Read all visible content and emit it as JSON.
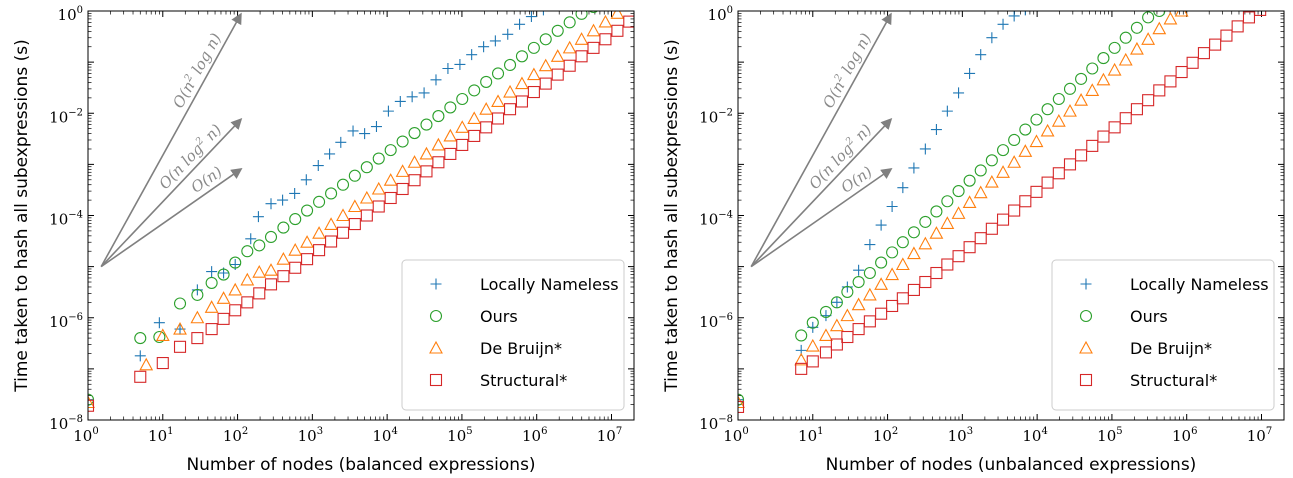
{
  "colors": {
    "locally_nameless": "#1f77b4",
    "ours": "#2ca02c",
    "de_bruijn": "#ff7f0e",
    "structural": "#d62728",
    "annotation": "#808080"
  },
  "chart_data": [
    {
      "type": "scatter",
      "xlabel": "Number of nodes (balanced expressions)",
      "ylabel": "Time taken to hash all subexpressions (s)",
      "xscale": "log",
      "yscale": "log",
      "xlim": [
        1,
        20000000
      ],
      "ylim": [
        1e-08,
        1
      ],
      "x_ticks": [
        {
          "base": "10",
          "exp": "0"
        },
        {
          "base": "10",
          "exp": "1"
        },
        {
          "base": "10",
          "exp": "2"
        },
        {
          "base": "10",
          "exp": "3"
        },
        {
          "base": "10",
          "exp": "4"
        },
        {
          "base": "10",
          "exp": "5"
        },
        {
          "base": "10",
          "exp": "6"
        },
        {
          "base": "10",
          "exp": "7"
        }
      ],
      "y_ticks": [
        {
          "base": "10",
          "exp": "−8"
        },
        {
          "base": "10",
          "exp": "−6"
        },
        {
          "base": "10",
          "exp": "−4"
        },
        {
          "base": "10",
          "exp": "−2"
        },
        {
          "base": "10",
          "exp": "0"
        }
      ],
      "legend": {
        "placement": "lower-right"
      },
      "annotations": [
        {
          "parts": [
            [
              "n",
              "O(n"
            ],
            [
              "sup",
              "2"
            ],
            [
              "n",
              " log n)"
            ]
          ],
          "slope": 2
        },
        {
          "parts": [
            [
              "n",
              "O(n log"
            ],
            [
              "sup",
              "2"
            ],
            [
              "n",
              " n)"
            ]
          ],
          "slope": 1.5
        },
        {
          "parts": [
            [
              "n",
              "O(n)"
            ]
          ],
          "slope": 1
        }
      ],
      "series": [
        {
          "name": "Locally Nameless",
          "marker": "plus",
          "x": [
            1,
            5,
            9,
            17,
            29,
            45,
            65,
            93,
            150,
            190,
            280,
            400,
            580,
            830,
            1200,
            1700,
            2400,
            3500,
            5000,
            7200,
            10400,
            15000,
            21600,
            31200,
            45000,
            65000,
            94000,
            135000,
            195000,
            280000,
            410000,
            590000,
            850000,
            1230000
          ],
          "y": [
            2.5e-08,
            1.8e-07,
            8e-07,
            6e-07,
            3.5e-06,
            8e-06,
            7.5e-06,
            1.1e-05,
            3.5e-05,
            9.5e-05,
            0.00017,
            0.0002,
            0.00027,
            0.0005,
            0.00095,
            0.0016,
            0.0027,
            0.0045,
            0.004,
            0.0055,
            0.011,
            0.017,
            0.021,
            0.025,
            0.045,
            0.075,
            0.09,
            0.14,
            0.2,
            0.26,
            0.35,
            0.55,
            0.78,
            1.05
          ]
        },
        {
          "name": "Ours",
          "marker": "circle",
          "x": [
            1,
            5,
            9,
            17,
            29,
            45,
            65,
            93,
            135,
            195,
            280,
            410,
            590,
            850,
            1230,
            1780,
            2570,
            3700,
            5350,
            7720,
            11150,
            16100,
            23250,
            33570,
            48470,
            70000,
            101000,
            146000,
            211000,
            304000,
            440000,
            635000,
            917000,
            1320000,
            1910000,
            2760000,
            3980000,
            5750000,
            8300000,
            12000000
          ],
          "y": [
            2.5e-08,
            4e-07,
            4.2e-07,
            1.9e-06,
            2.8e-06,
            4.8e-06,
            7e-06,
            1.2e-05,
            2e-05,
            2.6e-05,
            3.8e-05,
            5.8e-05,
            8.5e-05,
            0.000125,
            0.000185,
            0.00027,
            0.0004,
            0.0006,
            0.00088,
            0.0013,
            0.0019,
            0.0028,
            0.0041,
            0.006,
            0.0088,
            0.013,
            0.019,
            0.028,
            0.041,
            0.06,
            0.088,
            0.13,
            0.19,
            0.28,
            0.41,
            0.6,
            0.88,
            1.2,
            1.5,
            1.8
          ]
        },
        {
          "name": "De Bruijn*",
          "marker": "triangle",
          "x": [
            1,
            6,
            10,
            17,
            29,
            45,
            65,
            93,
            135,
            195,
            280,
            410,
            590,
            850,
            1230,
            1780,
            2570,
            3700,
            5350,
            7720,
            11150,
            16100,
            23250,
            33570,
            48470,
            70000,
            101000,
            146000,
            211000,
            304000,
            440000,
            635000,
            917000,
            1320000,
            1910000,
            2760000,
            3980000,
            5750000,
            8300000,
            12000000,
            17300000
          ],
          "y": [
            2.2e-08,
            1.2e-07,
            4.5e-07,
            6e-07,
            1e-06,
            1.6e-06,
            2.4e-06,
            3.5e-06,
            5.5e-06,
            7.8e-06,
            8.5e-06,
            1.4e-05,
            2.1e-05,
            3e-05,
            4.5e-05,
            6.7e-05,
            0.0001,
            0.00015,
            0.00022,
            0.00033,
            0.00049,
            0.00073,
            0.0011,
            0.0016,
            0.0024,
            0.0036,
            0.0053,
            0.0079,
            0.012,
            0.017,
            0.026,
            0.038,
            0.057,
            0.085,
            0.13,
            0.19,
            0.28,
            0.41,
            0.61,
            0.9,
            1.3
          ]
        },
        {
          "name": "Structural*",
          "marker": "square",
          "x": [
            1,
            5,
            10,
            17,
            29,
            45,
            65,
            93,
            135,
            195,
            280,
            410,
            590,
            850,
            1230,
            1780,
            2570,
            3700,
            5350,
            7720,
            11150,
            16100,
            23250,
            33570,
            48470,
            70000,
            101000,
            146000,
            211000,
            304000,
            440000,
            635000,
            917000,
            1320000,
            1910000,
            2760000,
            3980000,
            5750000,
            8300000,
            12000000,
            17300000
          ],
          "y": [
            1.9e-08,
            7e-08,
            1.3e-07,
            2.7e-07,
            4e-07,
            6e-07,
            9.5e-07,
            1.4e-06,
            2e-06,
            3e-06,
            4.5e-06,
            6.5e-06,
            9.5e-06,
            1.4e-05,
            2.1e-05,
            3.1e-05,
            4.6e-05,
            6.8e-05,
            0.0001,
            0.00015,
            0.00022,
            0.00033,
            0.00049,
            0.00073,
            0.0011,
            0.0016,
            0.0024,
            0.0036,
            0.0053,
            0.0079,
            0.012,
            0.017,
            0.026,
            0.038,
            0.057,
            0.085,
            0.13,
            0.19,
            0.28,
            0.41,
            0.62
          ]
        }
      ]
    },
    {
      "type": "scatter",
      "xlabel": "Number of nodes (unbalanced expressions)",
      "ylabel": "Time taken to hash all subexpressions (s)",
      "xscale": "log",
      "yscale": "log",
      "xlim": [
        1,
        20000000
      ],
      "ylim": [
        1e-08,
        1
      ],
      "x_ticks": [
        {
          "base": "10",
          "exp": "0"
        },
        {
          "base": "10",
          "exp": "1"
        },
        {
          "base": "10",
          "exp": "2"
        },
        {
          "base": "10",
          "exp": "3"
        },
        {
          "base": "10",
          "exp": "4"
        },
        {
          "base": "10",
          "exp": "5"
        },
        {
          "base": "10",
          "exp": "6"
        },
        {
          "base": "10",
          "exp": "7"
        }
      ],
      "y_ticks": [
        {
          "base": "10",
          "exp": "−8"
        },
        {
          "base": "10",
          "exp": "−6"
        },
        {
          "base": "10",
          "exp": "−4"
        },
        {
          "base": "10",
          "exp": "−2"
        },
        {
          "base": "10",
          "exp": "0"
        }
      ],
      "legend": {
        "placement": "lower-right"
      },
      "annotations": [
        {
          "parts": [
            [
              "n",
              "O(n"
            ],
            [
              "sup",
              "2"
            ],
            [
              "n",
              " log n)"
            ]
          ],
          "slope": 2
        },
        {
          "parts": [
            [
              "n",
              "O(n log"
            ],
            [
              "sup",
              "2"
            ],
            [
              "n",
              " n)"
            ]
          ],
          "slope": 1.5
        },
        {
          "parts": [
            [
              "n",
              "O(n)"
            ]
          ],
          "slope": 1
        }
      ],
      "series": [
        {
          "name": "Locally Nameless",
          "marker": "plus",
          "x": [
            1,
            7,
            10,
            15,
            21,
            29,
            41,
            58,
            82,
            115,
            160,
            225,
            320,
            450,
            630,
            890,
            1250,
            1760,
            2480,
            3500,
            4930,
            6950
          ],
          "y": [
            2.5e-08,
            2.3e-07,
            6.5e-07,
            1.1e-06,
            2e-06,
            4e-06,
            8.5e-06,
            2.7e-05,
            6.5e-05,
            0.00015,
            0.00035,
            0.00085,
            0.002,
            0.0048,
            0.011,
            0.025,
            0.06,
            0.14,
            0.3,
            0.55,
            0.8,
            1.05
          ]
        },
        {
          "name": "Ours",
          "marker": "circle",
          "x": [
            1,
            7,
            10,
            15,
            21,
            29,
            41,
            58,
            82,
            115,
            160,
            225,
            320,
            450,
            630,
            890,
            1250,
            1760,
            2480,
            3500,
            4930,
            6950,
            9800,
            13800,
            19500,
            27500,
            38700,
            54600,
            77000,
            108600,
            153000,
            216000,
            305000,
            430000,
            606000,
            855000,
            1200000
          ],
          "y": [
            2.5e-08,
            4.5e-07,
            8e-07,
            1.3e-06,
            2e-06,
            3.2e-06,
            5e-06,
            7.5e-06,
            1.2e-05,
            1.9e-05,
            3e-05,
            4.7e-05,
            7.5e-05,
            0.00012,
            0.00019,
            0.0003,
            0.00048,
            0.00076,
            0.0012,
            0.0019,
            0.003,
            0.0048,
            0.0075,
            0.012,
            0.019,
            0.03,
            0.047,
            0.075,
            0.12,
            0.19,
            0.3,
            0.47,
            0.75,
            1.0,
            1.3,
            1.6,
            1.9
          ]
        },
        {
          "name": "De Bruijn*",
          "marker": "triangle",
          "x": [
            1,
            7,
            10,
            15,
            21,
            29,
            41,
            58,
            82,
            115,
            160,
            225,
            320,
            450,
            630,
            890,
            1250,
            1760,
            2480,
            3500,
            4930,
            6950,
            9800,
            13800,
            19500,
            27500,
            38700,
            54600,
            77000,
            108600,
            153000,
            216000,
            305000,
            430000,
            606000,
            855000,
            1200000,
            1700000
          ],
          "y": [
            2.2e-08,
            1.5e-07,
            2.8e-07,
            4.5e-07,
            7e-07,
            1.1e-06,
            1.8e-06,
            2.8e-06,
            4.5e-06,
            7e-06,
            1.1e-05,
            1.8e-05,
            2.8e-05,
            4.5e-05,
            7e-05,
            0.00011,
            0.00018,
            0.00028,
            0.00045,
            0.0007,
            0.0011,
            0.0018,
            0.0028,
            0.0045,
            0.007,
            0.011,
            0.018,
            0.028,
            0.045,
            0.07,
            0.11,
            0.18,
            0.28,
            0.45,
            0.7,
            1.0,
            1.3,
            1.6
          ]
        },
        {
          "name": "Structural*",
          "marker": "square",
          "x": [
            1,
            7,
            10,
            15,
            21,
            29,
            41,
            58,
            82,
            115,
            160,
            225,
            320,
            450,
            630,
            890,
            1250,
            1760,
            2480,
            3500,
            4930,
            6950,
            9800,
            13800,
            19500,
            27500,
            38700,
            54600,
            77000,
            108600,
            153000,
            216000,
            305000,
            430000,
            606000,
            855000,
            1200000,
            1700000,
            2400000,
            3400000,
            4800000,
            6800000,
            9600000,
            13500000,
            19000000
          ],
          "y": [
            1.8e-08,
            1e-07,
            1.4e-07,
            2.1e-07,
            3e-07,
            4.2e-07,
            6e-07,
            8.5e-07,
            1.2e-06,
            1.7e-06,
            2.4e-06,
            3.5e-06,
            5e-06,
            7.5e-06,
            1.1e-05,
            1.6e-05,
            2.4e-05,
            3.6e-05,
            5.5e-05,
            8.3e-05,
            0.000125,
            0.00019,
            0.00029,
            0.00044,
            0.00067,
            0.001,
            0.0015,
            0.0023,
            0.0035,
            0.0053,
            0.008,
            0.012,
            0.018,
            0.028,
            0.042,
            0.064,
            0.097,
            0.15,
            0.22,
            0.33,
            0.5,
            0.75,
            1.05,
            1.4,
            1.8
          ]
        }
      ]
    }
  ]
}
